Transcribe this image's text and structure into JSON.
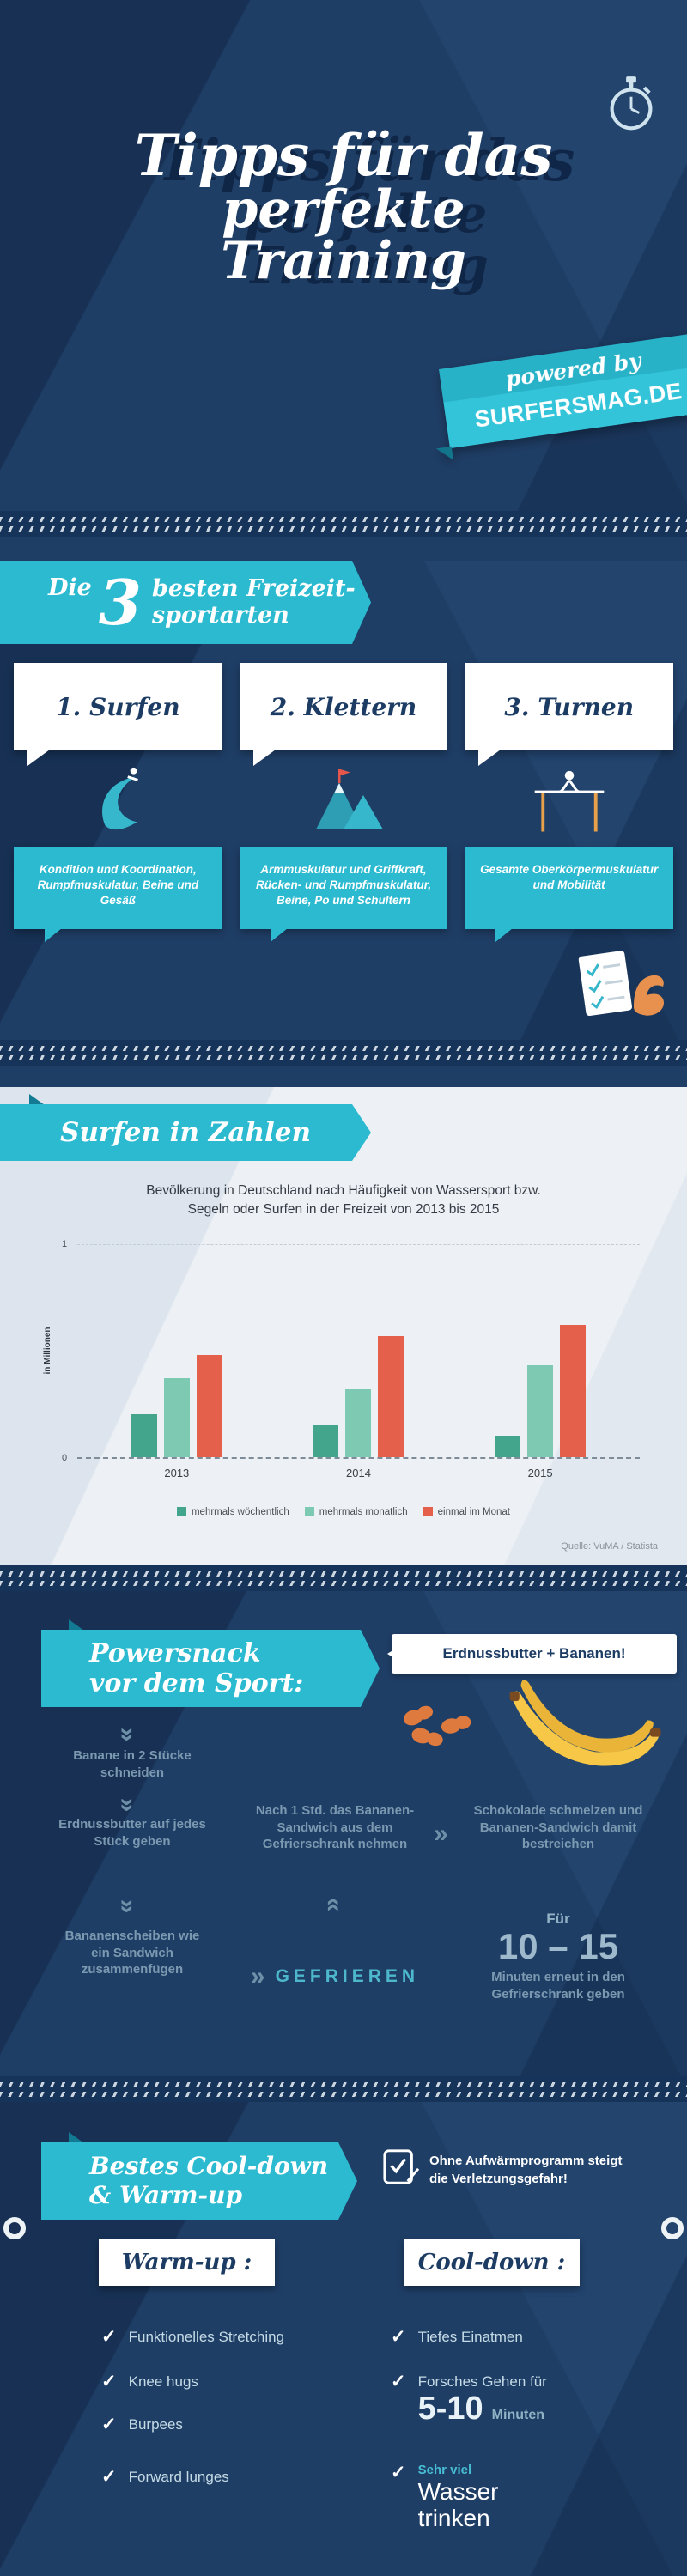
{
  "colors": {
    "background": "#1f3e66",
    "accent_cyan": "#2cbad0",
    "accent_orange": "#e8714a",
    "banana_yellow": "#f7c847"
  },
  "icons": {
    "chevron_double": "»",
    "check": "✓"
  },
  "header": {
    "title": [
      "Tipps für das",
      "perfekte",
      "Training"
    ],
    "powered_by": "powered by",
    "brand": "SURFERSMAG.DE"
  },
  "sports": {
    "intro": "Die",
    "number": "3",
    "heading_line1": "besten Freizeit-",
    "heading_line2": "sportarten",
    "items": [
      {
        "title": "1. Surfen",
        "icon": "surf-wave-icon",
        "benefits": "Kondition und Koordination, Rumpfmuskulatur, Beine und Gesäß"
      },
      {
        "title": "2. Klettern",
        "icon": "mountains-icon",
        "benefits": "Armmuskulatur und Griffkraft, Rücken- und Rumpfmuskulatur, Beine, Po und Schultern"
      },
      {
        "title": "3. Turnen",
        "icon": "gymnast-bar-icon",
        "benefits": "Gesamte Oberkörpermuskulatur und Mobilität"
      }
    ]
  },
  "stats": {
    "banner": "Surfen in Zahlen",
    "title_line1": "Bevölkerung in Deutschland nach Häufigkeit von Wassersport bzw.",
    "title_line2": "Segeln oder Surfen in der Freizeit von 2013 bis 2015",
    "source": "Quelle: VuMA / Statista"
  },
  "chart_data": {
    "type": "bar",
    "title": "Bevölkerung in Deutschland nach Häufigkeit von Wassersport bzw. Segeln oder Surfen in der Freizeit von 2013 bis 2015",
    "categories": [
      "2013",
      "2014",
      "2015"
    ],
    "series": [
      {
        "name": "mehrmals wöchentlich",
        "color": "#43a58b",
        "values": [
          0.2,
          0.15,
          0.1
        ]
      },
      {
        "name": "mehrmals monatlich",
        "color": "#7ec9b1",
        "values": [
          0.37,
          0.32,
          0.43
        ]
      },
      {
        "name": "einmal im Monat",
        "color": "#e5604b",
        "values": [
          0.48,
          0.57,
          0.62
        ]
      }
    ],
    "xlabel": "",
    "ylabel": "in Millionen",
    "ylim": [
      0,
      1
    ],
    "grid": false,
    "legend_position": "bottom"
  },
  "snack": {
    "banner_line1": "Powersnack",
    "banner_line2": "vor dem Sport:",
    "bubble": "Erdnussbutter + Bananen!",
    "step1": "Banane in 2 Stücke schneiden",
    "step2": "Erdnussbutter auf jedes Stück geben",
    "step3": "Bananenscheiben wie ein Sandwich zusammenfügen",
    "step4": "GEFRIEREN",
    "step5": "Nach 1 Std. das Bananen-Sandwich aus dem Gefrierschrank nehmen",
    "step6": "Schokolade schmelzen und Bananen-Sandwich damit bestreichen",
    "step7_prefix": "Für",
    "step7_number": "10 – 15",
    "step7_suffix": "Minuten erneut in den Gefrierschrank geben"
  },
  "cooldown": {
    "banner_line1": "Bestes Cool-down",
    "banner_line2": "& Warm-up",
    "warning_line1": "Ohne Aufwärmprogramm steigt",
    "warning_line2": "die Verletzungsgefahr!",
    "warmup_title": "Warm-up :",
    "cooldown_title": "Cool-down :",
    "warmup_items": [
      "Funktionelles Stretching",
      "Knee hugs",
      "Burpees",
      "Forward lunges"
    ],
    "cd_item1": "Tiefes Einatmen",
    "cd_item2_prefix": "Forsches Gehen für",
    "cd_item2_number": "5-10",
    "cd_item2_unit": "Minuten",
    "cd_item3_prefix": "Sehr viel",
    "cd_item3_main": "Wasser trinken"
  }
}
